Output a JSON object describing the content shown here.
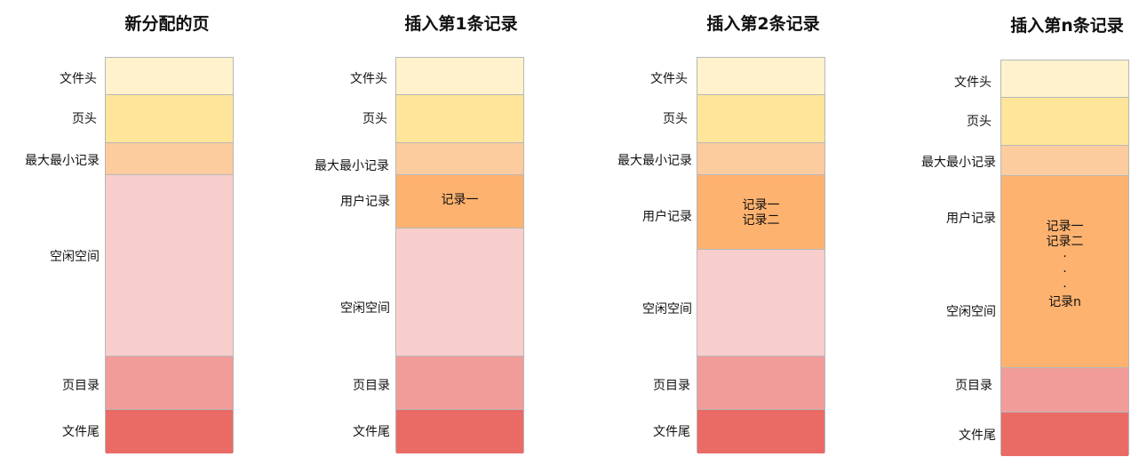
{
  "colors": {
    "file_header": "#fff2cc",
    "page_header": "#ffe599",
    "infimum_supremum": "#fccc9e",
    "user_records": "#fdb26f",
    "free_space": "#f8cecc",
    "page_directory": "#f19c99",
    "file_trailer": "#ea6b66",
    "border": "#b7b7b7"
  },
  "diagrams": [
    {
      "title": "新分配的页",
      "segments": [
        {
          "label": "文件头"
        },
        {
          "label": "页头"
        },
        {
          "label": "最大最小记录"
        },
        {
          "label": "空闲空间"
        },
        {
          "label": "页目录"
        },
        {
          "label": "文件尾"
        }
      ]
    },
    {
      "title": "插入第1条记录",
      "segments": [
        {
          "label": "文件头"
        },
        {
          "label": "页头"
        },
        {
          "label": "最大最小记录"
        },
        {
          "label": "用户记录",
          "content": [
            "记录一"
          ]
        },
        {
          "label": "空闲空间"
        },
        {
          "label": "页目录"
        },
        {
          "label": "文件尾"
        }
      ]
    },
    {
      "title": "插入第2条记录",
      "segments": [
        {
          "label": "文件头"
        },
        {
          "label": "页头"
        },
        {
          "label": "最大最小记录"
        },
        {
          "label": "用户记录",
          "content": [
            "记录一",
            "记录二"
          ]
        },
        {
          "label": "空闲空间"
        },
        {
          "label": "页目录"
        },
        {
          "label": "文件尾"
        }
      ]
    },
    {
      "title": "插入第n条记录",
      "segments": [
        {
          "label": "文件头"
        },
        {
          "label": "页头"
        },
        {
          "label": "最大最小记录"
        },
        {
          "label": "用户记录"
        },
        {
          "label": "空闲空间"
        },
        {
          "label": "页目录"
        },
        {
          "label": "文件尾"
        }
      ],
      "records_content": [
        "记录一",
        "记录二",
        "·",
        "·",
        "·",
        "记录n"
      ]
    }
  ]
}
